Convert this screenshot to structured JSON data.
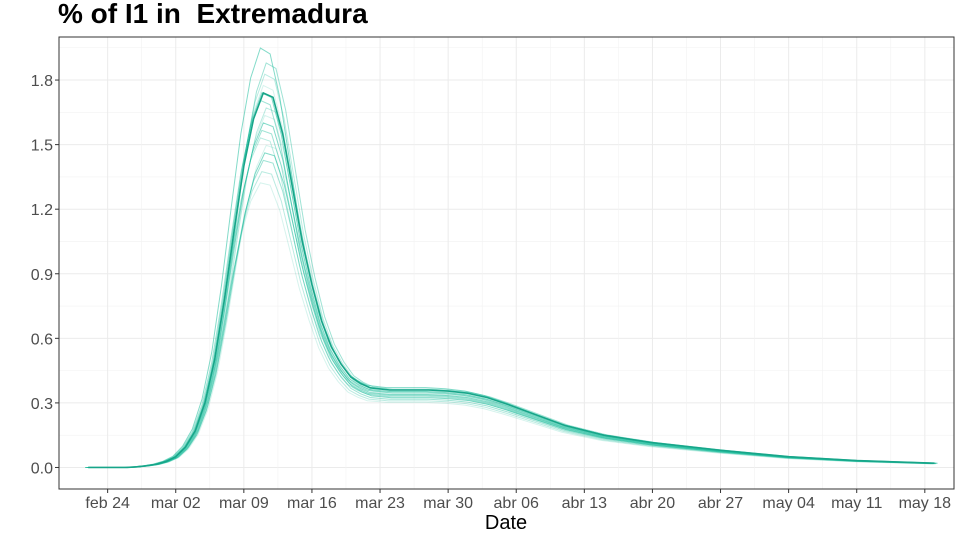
{
  "chart_data": {
    "type": "line",
    "title": "% of I1 in  Extremadura",
    "xlabel": "Date",
    "ylabel": "",
    "ylim": [
      -0.1,
      2.0
    ],
    "xlim": [
      "2020-02-19",
      "2020-05-21"
    ],
    "grid": true,
    "legend": "none",
    "series_color": "#1abc9c",
    "x_ticks": [
      {
        "date": "2020-02-24",
        "label": "feb 24"
      },
      {
        "date": "2020-03-02",
        "label": "mar 02"
      },
      {
        "date": "2020-03-09",
        "label": "mar 09"
      },
      {
        "date": "2020-03-16",
        "label": "mar 16"
      },
      {
        "date": "2020-03-23",
        "label": "mar 23"
      },
      {
        "date": "2020-03-30",
        "label": "mar 30"
      },
      {
        "date": "2020-04-06",
        "label": "abr 06"
      },
      {
        "date": "2020-04-13",
        "label": "abr 13"
      },
      {
        "date": "2020-04-20",
        "label": "abr 20"
      },
      {
        "date": "2020-04-27",
        "label": "abr 27"
      },
      {
        "date": "2020-05-04",
        "label": "may 04"
      },
      {
        "date": "2020-05-11",
        "label": "may 11"
      },
      {
        "date": "2020-05-18",
        "label": "may 18"
      }
    ],
    "y_ticks": [
      {
        "value": 0.0,
        "label": "0.0"
      },
      {
        "value": 0.3,
        "label": "0.3"
      },
      {
        "value": 0.6,
        "label": "0.6"
      },
      {
        "value": 0.9,
        "label": "0.9"
      },
      {
        "value": 1.2,
        "label": "1.2"
      },
      {
        "value": 1.5,
        "label": "1.5"
      },
      {
        "value": 1.8,
        "label": "1.8"
      }
    ],
    "main_series": {
      "x": [
        "2020-02-22",
        "2020-02-24",
        "2020-02-26",
        "2020-02-27",
        "2020-02-28",
        "2020-02-29",
        "2020-03-01",
        "2020-03-02",
        "2020-03-03",
        "2020-03-04",
        "2020-03-05",
        "2020-03-06",
        "2020-03-07",
        "2020-03-08",
        "2020-03-09",
        "2020-03-10",
        "2020-03-11",
        "2020-03-12",
        "2020-03-13",
        "2020-03-14",
        "2020-03-15",
        "2020-03-16",
        "2020-03-17",
        "2020-03-18",
        "2020-03-19",
        "2020-03-20",
        "2020-03-21",
        "2020-03-22",
        "2020-03-23",
        "2020-03-24",
        "2020-03-26",
        "2020-03-28",
        "2020-03-30",
        "2020-04-01",
        "2020-04-03",
        "2020-04-05",
        "2020-04-08",
        "2020-04-11",
        "2020-04-15",
        "2020-04-20",
        "2020-04-27",
        "2020-05-04",
        "2020-05-11",
        "2020-05-19"
      ],
      "y": [
        0.0,
        0.0,
        0.0,
        0.003,
        0.008,
        0.015,
        0.028,
        0.05,
        0.095,
        0.17,
        0.3,
        0.5,
        0.78,
        1.1,
        1.4,
        1.62,
        1.74,
        1.72,
        1.55,
        1.3,
        1.05,
        0.85,
        0.68,
        0.56,
        0.48,
        0.42,
        0.39,
        0.37,
        0.365,
        0.36,
        0.36,
        0.36,
        0.355,
        0.345,
        0.325,
        0.295,
        0.245,
        0.195,
        0.15,
        0.115,
        0.08,
        0.05,
        0.032,
        0.02
      ]
    },
    "ensemble_peak_factors": [
      0.76,
      0.79,
      0.82,
      0.84,
      0.86,
      0.88,
      0.9,
      0.92,
      0.94,
      0.96,
      0.98,
      1.0,
      1.02,
      1.05,
      1.08,
      1.12
    ],
    "ensemble_tail_factors": [
      0.84,
      0.86,
      0.88,
      0.9,
      0.91,
      0.92,
      0.93,
      0.94,
      0.95,
      0.96,
      0.97,
      0.98,
      0.99,
      1.0,
      1.01,
      1.03
    ]
  }
}
